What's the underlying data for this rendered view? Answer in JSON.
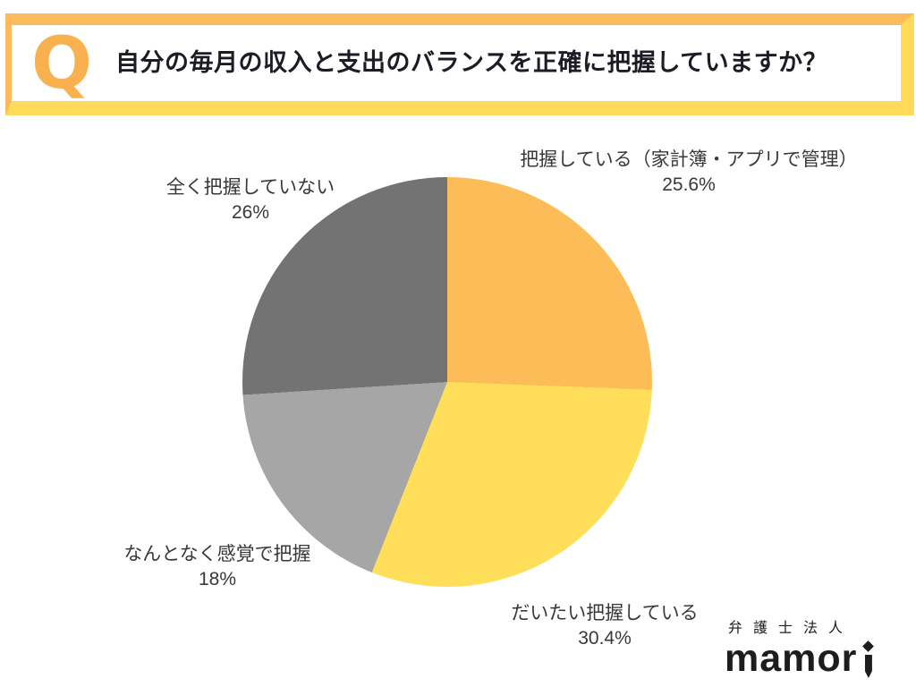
{
  "header": {
    "q_label": "Q",
    "question": "自分の毎月の収入と支出のバランスを正確に把握していますか？",
    "colors": {
      "frame_top_left": "#FBBA5C",
      "frame_bottom_right": "#FFDB59",
      "q_mark": "#F9B14F",
      "question_text": "#1C1C24"
    }
  },
  "chart_data": {
    "type": "pie",
    "title": "自分の毎月の収入と支出のバランスを正確に把握していますか？",
    "direction": "clockwise",
    "start_angle": "12-oclock",
    "legend_position": "none",
    "slices": [
      {
        "label": "把握している（家計簿・アプリで管理）",
        "value": 25.6,
        "display": "25.6%",
        "color": "#FCBC58"
      },
      {
        "label": "だいたい把握している",
        "value": 30.4,
        "display": "30.4%",
        "color": "#FFDE59"
      },
      {
        "label": "なんとなく感覚で把握",
        "value": 18,
        "display": "18%",
        "color": "#A6A6A6"
      },
      {
        "label": "全く把握していない",
        "value": 26,
        "display": "26%",
        "color": "#737373"
      }
    ]
  },
  "logo": {
    "company": "弁護士法人",
    "brand": "mamori"
  }
}
